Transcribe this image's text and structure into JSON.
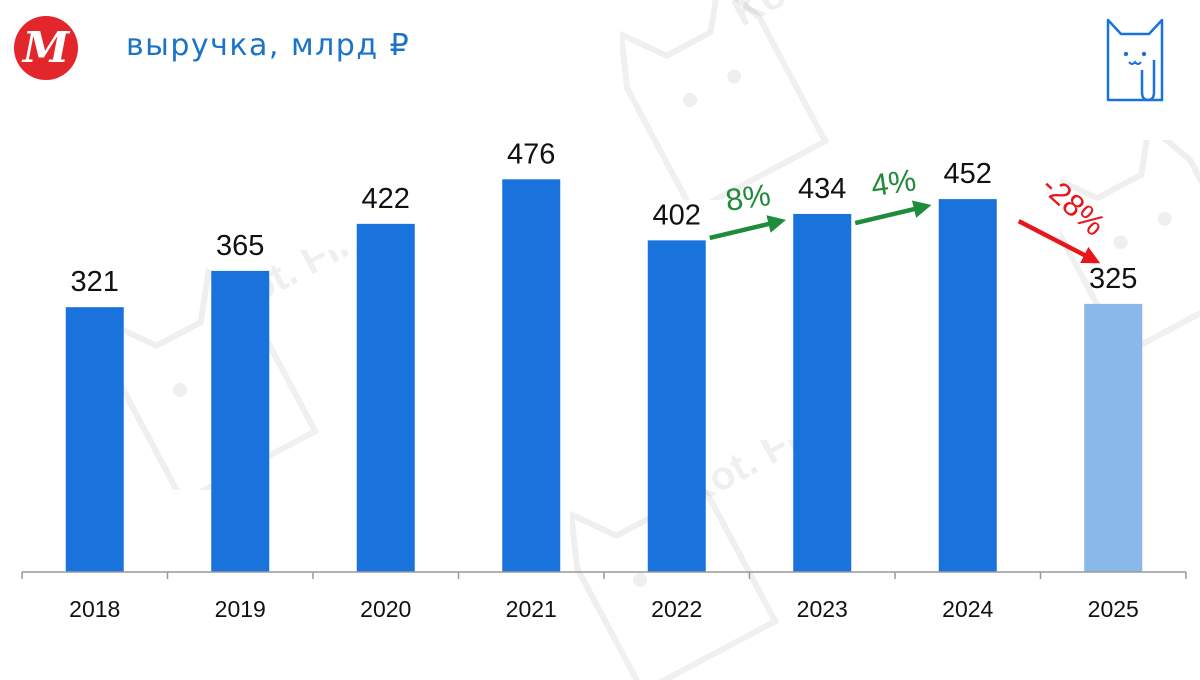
{
  "header": {
    "logo_letter": "М",
    "title": "выручка, млрд ₽"
  },
  "watermark_text": "Kot. Finance",
  "colors": {
    "bar": "#1a73dd",
    "bar_forecast": "#8ab8ea",
    "positive": "#1e8c3a",
    "negative": "#e8161b",
    "brand_red": "#e3262b",
    "title": "#1a73c7"
  },
  "chart_data": {
    "type": "bar",
    "categories": [
      "2018",
      "2019",
      "2020",
      "2021",
      "2022",
      "2023",
      "2024",
      "2025"
    ],
    "values": [
      321,
      365,
      422,
      476,
      402,
      434,
      452,
      325
    ],
    "value_labels": [
      "321",
      "365",
      "422",
      "476",
      "402",
      "434",
      "452",
      "325"
    ],
    "highlight": [
      "actual",
      "actual",
      "actual",
      "actual",
      "actual",
      "actual",
      "actual",
      "forecast"
    ],
    "ylim": [
      0,
      600
    ],
    "grid": false,
    "annotations": [
      {
        "text": "8%",
        "from": "2022",
        "to": "2023",
        "trend": "up"
      },
      {
        "text": "4%",
        "from": "2023",
        "to": "2024",
        "trend": "up"
      },
      {
        "text": "-28%",
        "from": "2024",
        "to": "2025",
        "trend": "down"
      }
    ]
  }
}
